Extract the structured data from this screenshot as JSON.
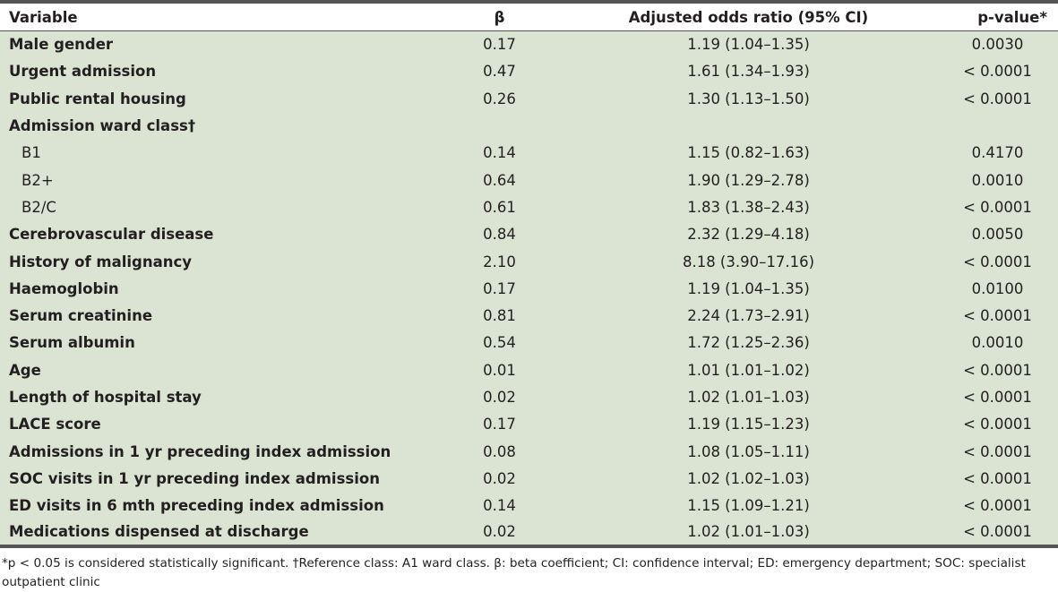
{
  "table": {
    "headers": {
      "variable": "Variable",
      "beta": "β",
      "odds_ratio": "Adjusted odds ratio (95% CI)",
      "p_value": "p-value*"
    },
    "rows": [
      {
        "variable": "Male gender",
        "beta": "0.17",
        "or": "1.19 (1.04–1.35)",
        "p": "0.0030",
        "indent": false
      },
      {
        "variable": "Urgent admission",
        "beta": "0.47",
        "or": "1.61 (1.34–1.93)",
        "p": "< 0.0001",
        "indent": false
      },
      {
        "variable": "Public rental housing",
        "beta": "0.26",
        "or": "1.30 (1.13–1.50)",
        "p": "< 0.0001",
        "indent": false
      },
      {
        "variable": "Admission ward class†",
        "beta": "",
        "or": "",
        "p": "",
        "indent": false
      },
      {
        "variable": "B1",
        "beta": "0.14",
        "or": "1.15 (0.82–1.63)",
        "p": "0.4170",
        "indent": true
      },
      {
        "variable": "B2+",
        "beta": "0.64",
        "or": "1.90 (1.29–2.78)",
        "p": "0.0010",
        "indent": true
      },
      {
        "variable": "B2/C",
        "beta": "0.61",
        "or": "1.83 (1.38–2.43)",
        "p": "< 0.0001",
        "indent": true
      },
      {
        "variable": "Cerebrovascular disease",
        "beta": "0.84",
        "or": "2.32 (1.29–4.18)",
        "p": "0.0050",
        "indent": false
      },
      {
        "variable": "History of malignancy",
        "beta": "2.10",
        "or": "8.18 (3.90–17.16)",
        "p": "< 0.0001",
        "indent": false
      },
      {
        "variable": "Haemoglobin",
        "beta": "0.17",
        "or": "1.19 (1.04–1.35)",
        "p": "0.0100",
        "indent": false
      },
      {
        "variable": "Serum creatinine",
        "beta": "0.81",
        "or": "2.24 (1.73–2.91)",
        "p": "< 0.0001",
        "indent": false
      },
      {
        "variable": "Serum albumin",
        "beta": "0.54",
        "or": "1.72 (1.25–2.36)",
        "p": "0.0010",
        "indent": false
      },
      {
        "variable": "Age",
        "beta": "0.01",
        "or": "1.01 (1.01–1.02)",
        "p": "< 0.0001",
        "indent": false
      },
      {
        "variable": "Length of hospital stay",
        "beta": "0.02",
        "or": "1.02 (1.01–1.03)",
        "p": "< 0.0001",
        "indent": false
      },
      {
        "variable": "LACE score",
        "beta": "0.17",
        "or": "1.19 (1.15–1.23)",
        "p": "< 0.0001",
        "indent": false
      },
      {
        "variable": "Admissions in 1 yr preceding index admission",
        "beta": "0.08",
        "or": "1.08 (1.05–1.11)",
        "p": "< 0.0001",
        "indent": false
      },
      {
        "variable": "SOC visits in 1 yr preceding index admission",
        "beta": "0.02",
        "or": "1.02 (1.02–1.03)",
        "p": "< 0.0001",
        "indent": false
      },
      {
        "variable": "ED visits in 6 mth preceding index admission",
        "beta": "0.14",
        "or": "1.15 (1.09–1.21)",
        "p": "< 0.0001",
        "indent": false
      },
      {
        "variable": "Medications dispensed at discharge",
        "beta": "0.02",
        "or": "1.02 (1.01–1.03)",
        "p": "< 0.0001",
        "indent": false
      }
    ]
  },
  "footnote": "*p < 0.05 is considered statistically significant. †Reference class: A1 ward class. β: beta coefficient; CI: confidence interval; ED: emergency department; SOC: specialist outpatient clinic",
  "colors": {
    "row_background": "#dbe3d3",
    "rule": "#555555",
    "text": "#231f20"
  }
}
